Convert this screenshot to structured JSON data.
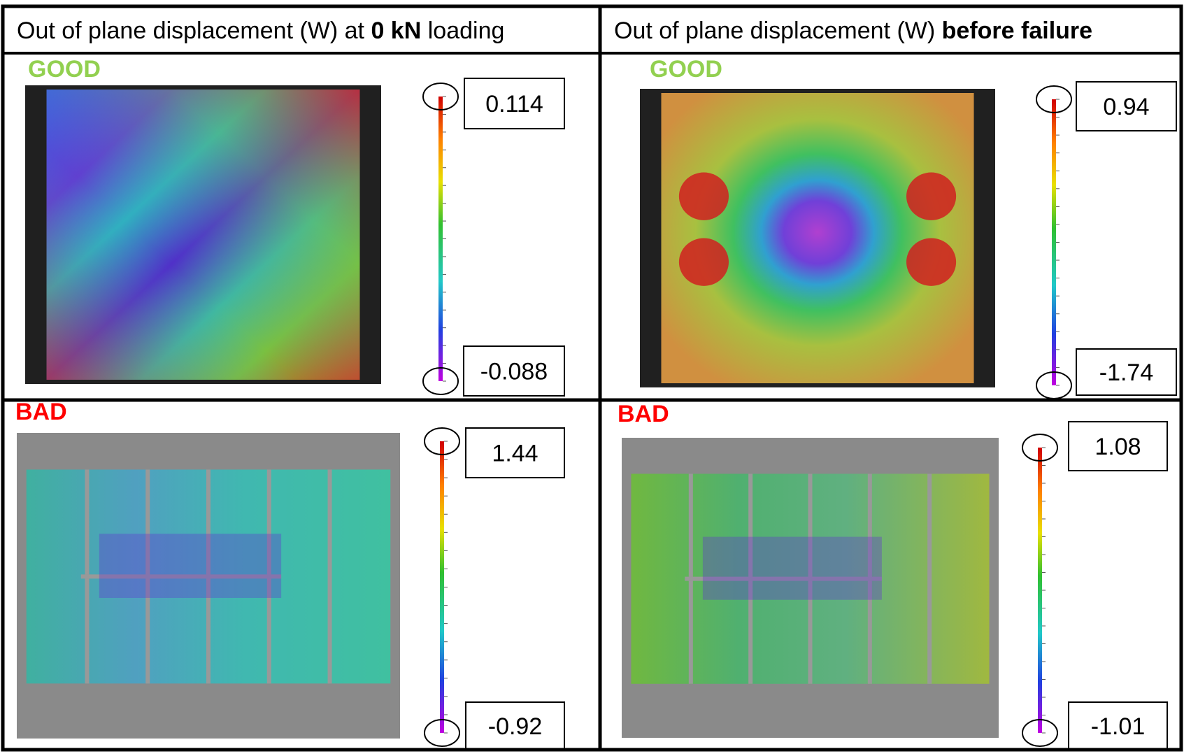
{
  "header": [
    {
      "prefix": "Out of plane displacement (W) at ",
      "bold": "0 kN",
      "suffix": " loading"
    },
    {
      "prefix": "Out of plane displacement (W) ",
      "bold": "before failure"
    }
  ],
  "cells": [
    {
      "label": "GOOD",
      "max": "0.114",
      "min": "-0.088"
    },
    {
      "label": "GOOD",
      "max": "0.94",
      "min": "-1.74"
    },
    {
      "label": "BAD",
      "max": "1.44",
      "min": "-0.92"
    },
    {
      "label": "BAD",
      "max": "1.08",
      "min": "-1.01"
    }
  ]
}
